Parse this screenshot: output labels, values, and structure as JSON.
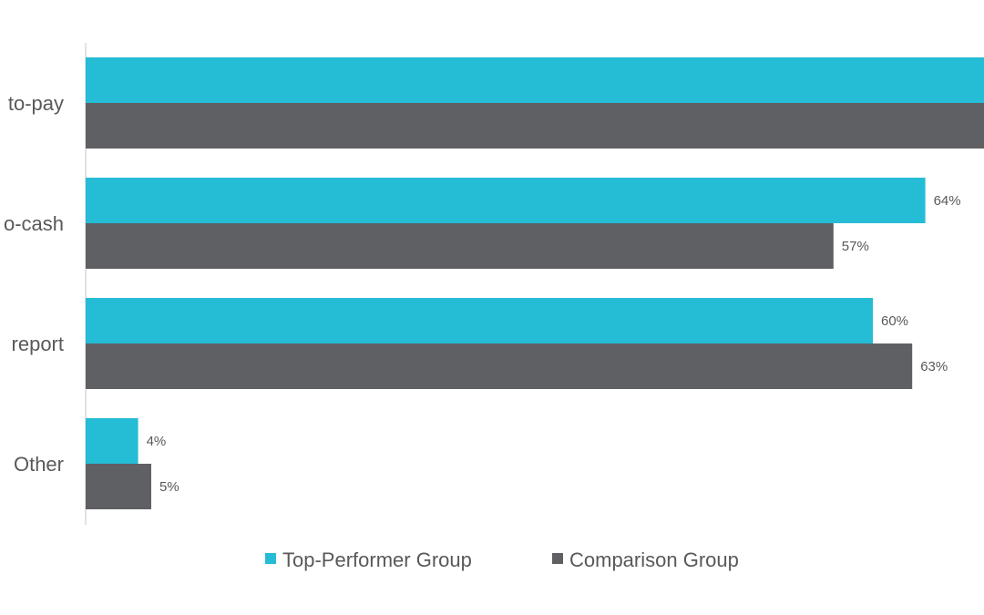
{
  "chart_data": {
    "type": "bar",
    "orientation": "horizontal",
    "categories": [
      "to-pay",
      "o-cash",
      "report",
      "Other"
    ],
    "series": [
      {
        "name": "Top-Performer Group",
        "color": "#25bcd5",
        "values": [
          70,
          64,
          60,
          4
        ],
        "labels": [
          null,
          "64%",
          "60%",
          "4%"
        ]
      },
      {
        "name": "Comparison Group",
        "color": "#5f6064",
        "values": [
          70,
          57,
          63,
          5
        ],
        "labels": [
          null,
          "57%",
          "63%",
          "5%"
        ]
      }
    ],
    "xlim": [
      0,
      68
    ],
    "grid": false,
    "legend": "bottom",
    "note": "first category bars extend past the visible area"
  }
}
